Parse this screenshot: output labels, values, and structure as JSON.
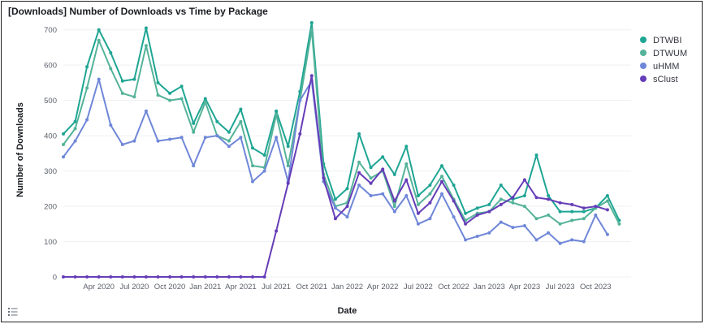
{
  "panel": {
    "title": "[Downloads] Number of Downloads vs Time by Package"
  },
  "legend_toggle": {
    "icon": "list-icon"
  },
  "chart_data": {
    "type": "line",
    "title": "[Downloads] Number of Downloads vs Time by Package",
    "xlabel": "Date",
    "ylabel": "Number of Downloads",
    "ylim": [
      0,
      720
    ],
    "yticks": [
      0,
      100,
      200,
      300,
      400,
      500,
      600,
      700
    ],
    "xticks": [
      "Apr 2020",
      "Jul 2020",
      "Oct 2020",
      "Jan 2021",
      "Apr 2021",
      "Jul 2021",
      "Oct 2021",
      "Jan 2022",
      "Apr 2022",
      "Jul 2022",
      "Oct 2022",
      "Jan 2023",
      "Apr 2023",
      "Jul 2023",
      "Oct 2023"
    ],
    "grid": true,
    "legend_position": "right",
    "x": [
      "2020-01",
      "2020-02",
      "2020-03",
      "2020-04",
      "2020-05",
      "2020-06",
      "2020-07",
      "2020-08",
      "2020-09",
      "2020-10",
      "2020-11",
      "2020-12",
      "2021-01",
      "2021-02",
      "2021-03",
      "2021-04",
      "2021-05",
      "2021-06",
      "2021-07",
      "2021-08",
      "2021-09",
      "2021-10",
      "2021-11",
      "2021-12",
      "2022-01",
      "2022-02",
      "2022-03",
      "2022-04",
      "2022-05",
      "2022-06",
      "2022-07",
      "2022-08",
      "2022-09",
      "2022-10",
      "2022-11",
      "2022-12",
      "2023-01",
      "2023-02",
      "2023-03",
      "2023-04",
      "2023-05",
      "2023-06",
      "2023-07",
      "2023-08",
      "2023-09",
      "2023-10",
      "2023-11",
      "2023-12",
      "2024-01"
    ],
    "series": [
      {
        "name": "DTWBI",
        "color": "#1ea593",
        "values": [
          405,
          440,
          595,
          700,
          635,
          555,
          560,
          705,
          550,
          520,
          540,
          435,
          505,
          440,
          410,
          475,
          365,
          345,
          470,
          370,
          525,
          720,
          320,
          220,
          250,
          405,
          310,
          340,
          290,
          370,
          230,
          260,
          315,
          260,
          180,
          195,
          205,
          260,
          220,
          230,
          345,
          230,
          185,
          185,
          185,
          195,
          230,
          160,
          null
        ]
      },
      {
        "name": "DTWUM",
        "color": "#54b399",
        "values": [
          375,
          420,
          535,
          670,
          590,
          520,
          510,
          655,
          515,
          500,
          505,
          410,
          495,
          400,
          385,
          440,
          315,
          310,
          460,
          315,
          500,
          700,
          290,
          200,
          210,
          325,
          280,
          300,
          200,
          320,
          205,
          235,
          285,
          220,
          160,
          180,
          185,
          220,
          210,
          200,
          165,
          175,
          150,
          160,
          165,
          195,
          215,
          150,
          null
        ]
      },
      {
        "name": "uHMM",
        "color": "#6f87d8",
        "values": [
          340,
          385,
          445,
          560,
          430,
          375,
          385,
          470,
          385,
          390,
          395,
          315,
          395,
          400,
          370,
          395,
          270,
          300,
          395,
          270,
          500,
          555,
          270,
          195,
          170,
          260,
          230,
          235,
          185,
          230,
          150,
          165,
          235,
          170,
          105,
          115,
          125,
          155,
          140,
          145,
          105,
          125,
          95,
          105,
          100,
          175,
          120,
          null,
          null
        ]
      },
      {
        "name": "sClust",
        "color": "#663db8",
        "values": [
          0,
          0,
          0,
          0,
          0,
          0,
          0,
          0,
          0,
          0,
          0,
          0,
          0,
          0,
          0,
          0,
          0,
          0,
          130,
          265,
          405,
          570,
          280,
          165,
          200,
          295,
          265,
          305,
          215,
          275,
          180,
          210,
          270,
          215,
          150,
          175,
          185,
          205,
          225,
          275,
          225,
          220,
          210,
          205,
          195,
          200,
          190,
          null,
          null
        ]
      }
    ]
  }
}
